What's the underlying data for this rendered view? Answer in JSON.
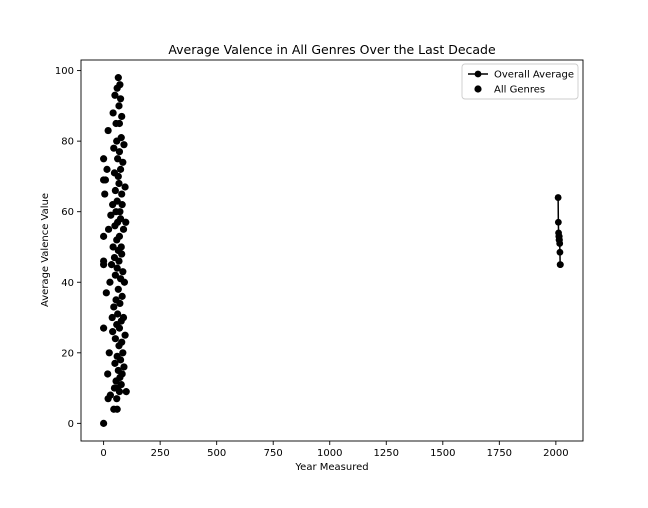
{
  "chart_data": {
    "type": "scatter",
    "title": "Average Valence in All Genres Over the Last Decade",
    "xlabel": "Year Measured",
    "ylabel": "Average Valence Value",
    "xlim": [
      -100,
      2120
    ],
    "ylim": [
      -5,
      103
    ],
    "xticks": [
      0,
      250,
      500,
      750,
      1000,
      1250,
      1500,
      1750,
      2000
    ],
    "yticks": [
      0,
      20,
      40,
      60,
      80,
      100
    ],
    "grid": false,
    "legend_position": "upper right",
    "series": [
      {
        "name": "Overall Average",
        "kind": "line",
        "color": "#000000",
        "x": [
          2010,
          2011,
          2012,
          2013,
          2014,
          2015,
          2016,
          2017,
          2018,
          2019,
          2020
        ],
        "y": [
          64,
          57,
          54,
          53,
          52,
          53,
          52,
          51,
          48.5,
          45,
          45
        ]
      },
      {
        "name": "All Genres",
        "kind": "scatter",
        "color": "#000000",
        "x": [
          0,
          0,
          0,
          0,
          0,
          0,
          0,
          5,
          8,
          12,
          15,
          18,
          20,
          20,
          22,
          25,
          28,
          30,
          32,
          35,
          38,
          40,
          40,
          42,
          42,
          45,
          45,
          45,
          48,
          48,
          48,
          50,
          50,
          50,
          52,
          52,
          52,
          55,
          55,
          55,
          55,
          58,
          58,
          58,
          58,
          60,
          60,
          60,
          60,
          60,
          62,
          62,
          62,
          62,
          65,
          65,
          65,
          65,
          65,
          68,
          68,
          68,
          68,
          70,
          70,
          70,
          70,
          70,
          72,
          72,
          72,
          72,
          75,
          75,
          75,
          75,
          75,
          78,
          78,
          78,
          78,
          80,
          80,
          80,
          80,
          82,
          82,
          82,
          85,
          85,
          85,
          88,
          88,
          90,
          90,
          92,
          95,
          95,
          98,
          100
        ],
        "y": [
          0,
          27,
          45,
          46,
          53,
          69,
          75,
          65,
          69,
          37,
          72,
          14,
          7,
          83,
          55,
          20,
          40,
          8,
          59,
          45,
          30,
          26,
          62,
          50,
          88,
          4,
          33,
          78,
          10,
          47,
          71,
          17,
          56,
          93,
          24,
          42,
          66,
          12,
          35,
          60,
          85,
          7,
          28,
          52,
          80,
          4,
          19,
          44,
          63,
          95,
          10,
          31,
          57,
          75,
          15,
          38,
          49,
          70,
          98,
          22,
          46,
          68,
          90,
          9,
          27,
          53,
          77,
          85,
          13,
          34,
          60,
          96,
          18,
          41,
          58,
          72,
          92,
          11,
          29,
          50,
          81,
          23,
          48,
          65,
          87,
          14,
          36,
          62,
          20,
          43,
          74,
          30,
          55,
          16,
          79,
          40,
          25,
          67,
          57,
          9
        ]
      }
    ]
  }
}
